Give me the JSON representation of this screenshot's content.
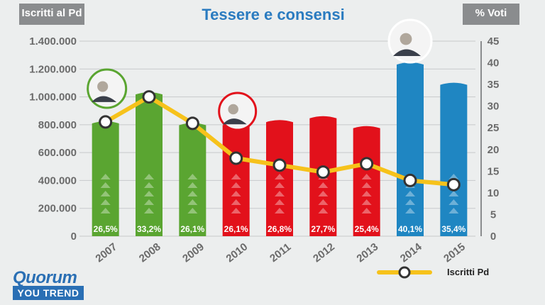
{
  "header": {
    "left_axis_tag": "Iscritti al Pd",
    "right_axis_tag": "% Voti",
    "title": "Tessere e consensi"
  },
  "branding": {
    "line1": "Quorum",
    "line2": "YOU TREND"
  },
  "legend": {
    "label": "Iscritti Pd"
  },
  "colors": {
    "green": "#5aa531",
    "red": "#e2111b",
    "blue": "#1f86c2",
    "line": "#f6c21b",
    "gridline": "#c7c9cb",
    "axis_text": "#6b6b6b"
  },
  "chart_data": {
    "type": "bar",
    "title": "Tessere e consensi",
    "categories": [
      "2007",
      "2008",
      "2009",
      "2010",
      "2011",
      "2012",
      "2013",
      "2014",
      "2015"
    ],
    "bar_colors": [
      "green",
      "green",
      "green",
      "red",
      "red",
      "red",
      "red",
      "blue",
      "blue"
    ],
    "series": [
      {
        "type": "bar",
        "axis": "right",
        "values": [
          26.5,
          33.2,
          26.1,
          26.1,
          26.8,
          27.7,
          25.4,
          40.1,
          35.4
        ],
        "labels": [
          "26,5%",
          "33,2%",
          "26,1%",
          "26,1%",
          "26,8%",
          "27,7%",
          "25,4%",
          "40,1%",
          "35,4%"
        ]
      },
      {
        "type": "line",
        "axis": "left",
        "name": "Iscritti Pd",
        "values": [
          820000,
          1000000,
          810000,
          560000,
          510000,
          460000,
          520000,
          400000,
          370000
        ]
      }
    ],
    "y_left": {
      "label": "Iscritti al Pd",
      "range": [
        0,
        1400000
      ],
      "ticks": [
        0,
        200000,
        400000,
        600000,
        800000,
        1000000,
        1200000,
        1400000
      ],
      "tick_labels": [
        "0",
        "200.000",
        "400.000",
        "600.000",
        "800.000",
        "1.000.000",
        "1.200.000",
        "1.400.000"
      ]
    },
    "y_right": {
      "label": "% Voti",
      "range": [
        0,
        45
      ],
      "ticks": [
        0,
        5,
        10,
        15,
        20,
        25,
        30,
        35,
        40,
        45
      ],
      "tick_labels": [
        "0",
        "5",
        "10",
        "15",
        "20",
        "25",
        "30",
        "35",
        "40",
        "45"
      ]
    },
    "grid": true,
    "legend_position": "bottom-right"
  }
}
